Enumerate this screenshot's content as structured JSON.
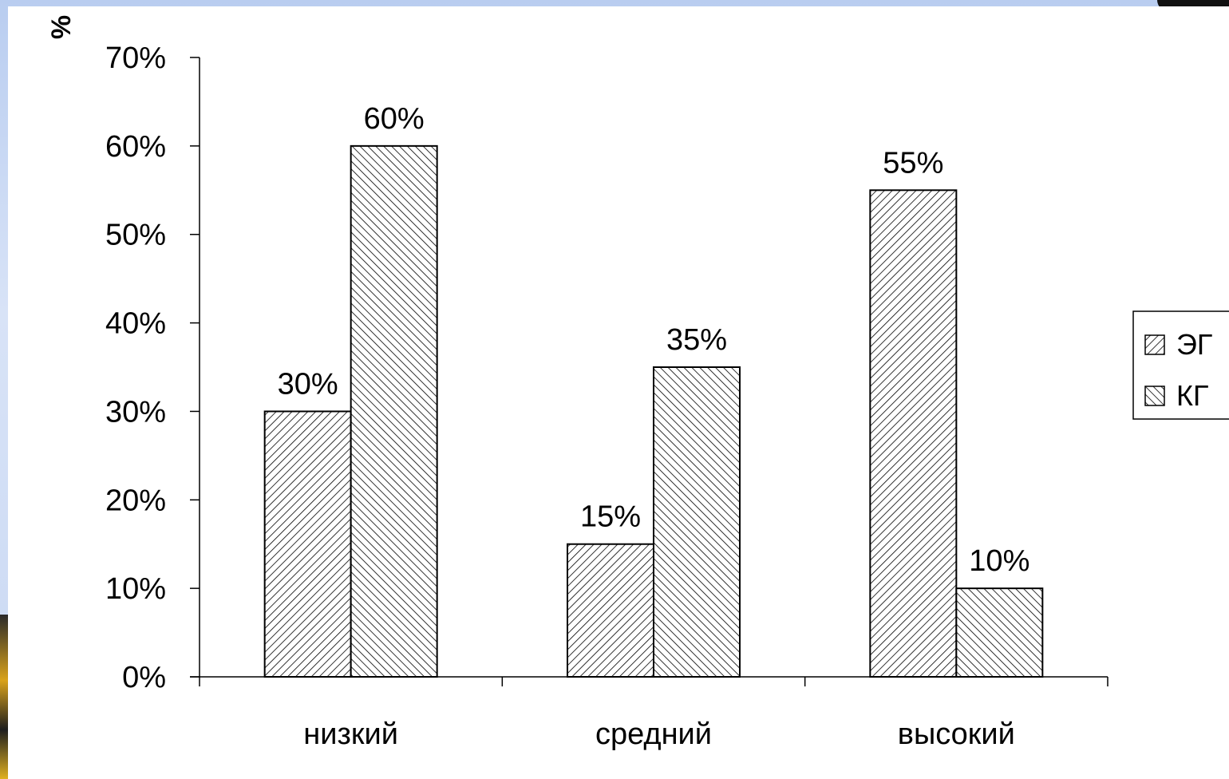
{
  "chart_data": {
    "type": "bar",
    "ylabel": "%",
    "categories": [
      "низкий",
      "средний",
      "высокий"
    ],
    "series": [
      {
        "name": "ЭГ",
        "values": [
          30,
          15,
          55
        ],
        "hatch": "forward",
        "labels": [
          "30%",
          "15%",
          "55%"
        ]
      },
      {
        "name": "КГ",
        "values": [
          60,
          35,
          10
        ],
        "hatch": "backward",
        "labels": [
          "60%",
          "35%",
          "10%"
        ]
      }
    ],
    "ylim": [
      0,
      70
    ],
    "yticks": [
      0,
      10,
      20,
      30,
      40,
      50,
      60,
      70
    ],
    "ytick_labels": [
      "0%",
      "10%",
      "20%",
      "30%",
      "40%",
      "50%",
      "60%",
      "70%"
    ],
    "grid": false,
    "legend_position": "right",
    "bar_fill": "#ffffff",
    "bar_stroke": "#000000",
    "background": "#ffffff"
  }
}
